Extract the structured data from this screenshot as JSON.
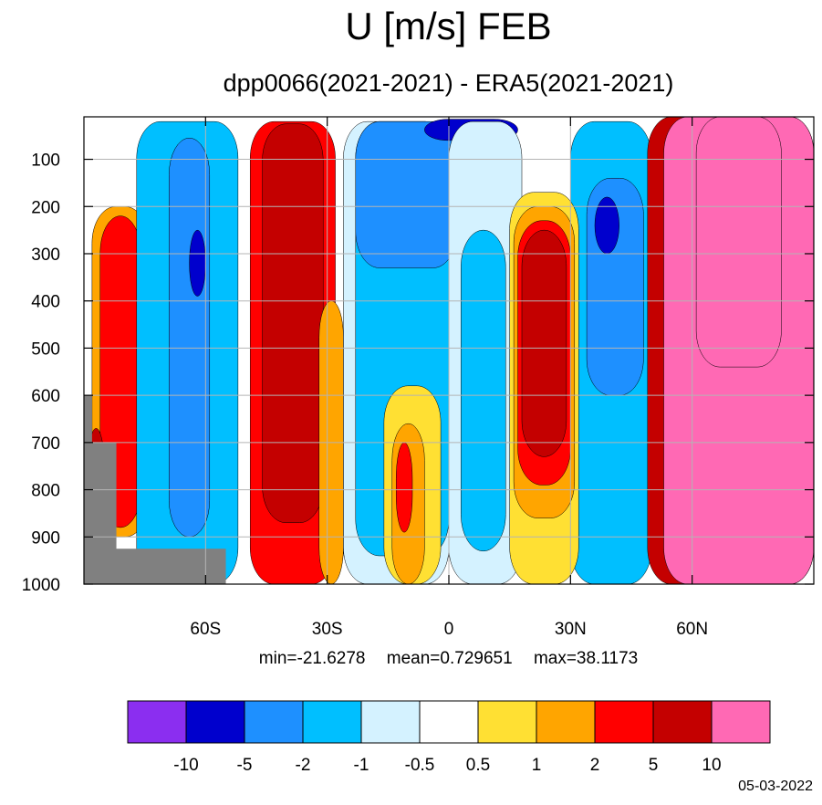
{
  "header": {
    "title": "U [m/s] FEB",
    "subtitle": "dpp0066(2021-2021) - ERA5(2021-2021)"
  },
  "stats": {
    "min": "min=-21.6278",
    "mean": "mean=0.729651",
    "max": "max=38.1173"
  },
  "footer": {
    "date": "05-03-2022"
  },
  "chart_data": {
    "type": "heatmap",
    "title": "U [m/s] FEB",
    "subtitle": "dpp0066(2021-2021) - ERA5(2021-2021)",
    "xlabel": "",
    "ylabel": "",
    "xlim": [
      -90,
      90
    ],
    "ylim": [
      1000,
      10
    ],
    "x_ticks": [
      -60,
      -30,
      0,
      30,
      60
    ],
    "x_tick_labels": [
      "60S",
      "30S",
      "0",
      "30N",
      "60N"
    ],
    "y_ticks": [
      100,
      200,
      300,
      400,
      500,
      600,
      700,
      800,
      900,
      1000
    ],
    "y_tick_labels": [
      "100",
      "200",
      "300",
      "400",
      "500",
      "600",
      "700",
      "800",
      "900",
      "1000"
    ],
    "grid": true,
    "contour_levels": [
      -10,
      -5,
      -2,
      -1,
      -0.5,
      0.5,
      1,
      2,
      5,
      10
    ],
    "colorbar": {
      "labels": [
        "-10",
        "-5",
        "-2",
        "-1",
        "-0.5",
        "0.5",
        "1",
        "2",
        "5",
        "10"
      ],
      "colors": [
        "#8b2ef0",
        "#0000cd",
        "#1e90ff",
        "#00bfff",
        "#d4f2ff",
        "#ffffff",
        "#ffe033",
        "#ffa500",
        "#ff0000",
        "#c40000",
        "#ff69b4"
      ],
      "placement": "bottom"
    },
    "missing_color": "#808080",
    "regions": [
      {
        "level": 1,
        "lat": [
          -88,
          -74
        ],
        "p": [
          200,
          900
        ]
      },
      {
        "level": 2,
        "lat": [
          -86,
          -76
        ],
        "p": [
          220,
          880
        ]
      },
      {
        "level": 5,
        "lat": [
          -89,
          -85
        ],
        "p": [
          670,
          920
        ]
      },
      {
        "level": -2,
        "lat": [
          -77,
          -52
        ],
        "p": [
          20,
          1000
        ]
      },
      {
        "level": -5,
        "lat": [
          -69,
          -59
        ],
        "p": [
          55,
          900
        ]
      },
      {
        "level": -10,
        "lat": [
          -64,
          -60
        ],
        "p": [
          250,
          390
        ]
      },
      {
        "level": 2,
        "lat": [
          -49,
          -28
        ],
        "p": [
          20,
          1000
        ]
      },
      {
        "level": 5,
        "lat": [
          -46,
          -31
        ],
        "p": [
          25,
          870
        ]
      },
      {
        "level": 1,
        "lat": [
          -32,
          -26
        ],
        "p": [
          400,
          1000
        ]
      },
      {
        "level": -1,
        "lat": [
          -26,
          0
        ],
        "p": [
          20,
          1000
        ]
      },
      {
        "level": -2,
        "lat": [
          -23,
          0
        ],
        "p": [
          20,
          940
        ]
      },
      {
        "level": -5,
        "lat": [
          -23,
          2
        ],
        "p": [
          20,
          330
        ]
      },
      {
        "level": -10,
        "lat": [
          -6,
          17
        ],
        "p": [
          15,
          60
        ]
      },
      {
        "level": 0.5,
        "lat": [
          -16,
          -2
        ],
        "p": [
          580,
          1000
        ]
      },
      {
        "level": 1,
        "lat": [
          -14,
          -6
        ],
        "p": [
          660,
          1000
        ]
      },
      {
        "level": 2,
        "lat": [
          -13,
          -9
        ],
        "p": [
          700,
          890
        ]
      },
      {
        "level": -1,
        "lat": [
          0,
          18
        ],
        "p": [
          20,
          1000
        ]
      },
      {
        "level": -2,
        "lat": [
          3,
          14
        ],
        "p": [
          250,
          930
        ]
      },
      {
        "level": -2,
        "lat": [
          30,
          50
        ],
        "p": [
          20,
          1000
        ]
      },
      {
        "level": -5,
        "lat": [
          34,
          48
        ],
        "p": [
          140,
          600
        ]
      },
      {
        "level": -10,
        "lat": [
          36,
          42
        ],
        "p": [
          180,
          300
        ]
      },
      {
        "level": 0.5,
        "lat": [
          15,
          32
        ],
        "p": [
          170,
          1000
        ]
      },
      {
        "level": 1,
        "lat": [
          16,
          31
        ],
        "p": [
          200,
          860
        ]
      },
      {
        "level": 2,
        "lat": [
          17,
          30
        ],
        "p": [
          230,
          790
        ]
      },
      {
        "level": 5,
        "lat": [
          18,
          29
        ],
        "p": [
          250,
          730
        ]
      },
      {
        "level": 5,
        "lat": [
          49,
          90
        ],
        "p": [
          10,
          1000
        ]
      },
      {
        "level": 10,
        "lat": [
          53,
          90
        ],
        "p": [
          10,
          1000
        ]
      },
      {
        "level": 15,
        "lat": [
          61,
          82
        ],
        "p": [
          10,
          540
        ]
      }
    ]
  }
}
